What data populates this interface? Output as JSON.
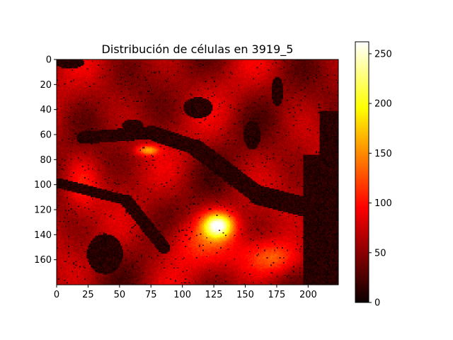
{
  "chart_data": {
    "type": "heatmap",
    "title": "Distribución de células en 3919_5",
    "xlabel": "",
    "ylabel": "",
    "colormap": "hot",
    "image_shape": {
      "rows": 180,
      "cols": 224
    },
    "xlim": [
      0,
      224
    ],
    "ylim": [
      180,
      0
    ],
    "x_ticks": [
      0,
      25,
      50,
      75,
      100,
      125,
      150,
      175,
      200
    ],
    "x_tick_labels": [
      "0",
      "25",
      "50",
      "75",
      "100",
      "125",
      "150",
      "175",
      "200"
    ],
    "y_ticks": [
      0,
      20,
      40,
      60,
      80,
      100,
      120,
      140,
      160
    ],
    "y_tick_labels": [
      "0",
      "20",
      "40",
      "60",
      "80",
      "100",
      "120",
      "140",
      "160"
    ],
    "colorbar": {
      "vmin": 0,
      "vmax": 262,
      "ticks": [
        0,
        50,
        100,
        150,
        200,
        250
      ],
      "tick_labels": [
        "0",
        "50",
        "100",
        "150",
        "200",
        "250"
      ]
    },
    "value_regions": [
      {
        "description": "bright hotspot",
        "x": 128,
        "y": 130,
        "value": 230
      },
      {
        "description": "orange band",
        "x": 75,
        "y": 72,
        "value": 160
      },
      {
        "description": "orange lower right",
        "x": 170,
        "y": 158,
        "value": 135
      },
      {
        "description": "dark right edge",
        "x": 210,
        "y": 120,
        "value": 5
      },
      {
        "description": "dark channel",
        "x": 150,
        "y": 110,
        "value": 8
      },
      {
        "description": "dark lower-left lobe",
        "x": 38,
        "y": 155,
        "value": 10
      }
    ]
  }
}
